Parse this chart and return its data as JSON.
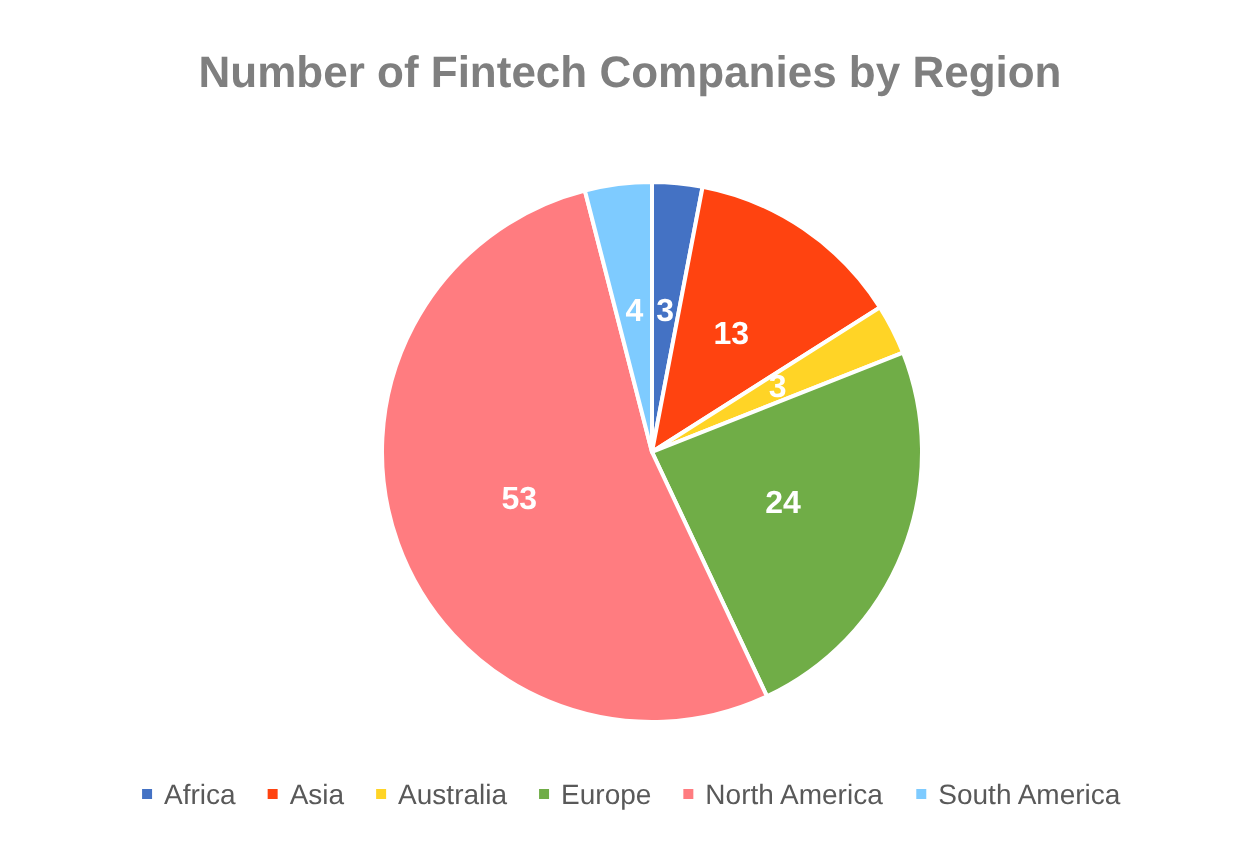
{
  "chart_data": {
    "type": "pie",
    "title": "Number of Fintech Companies by Region",
    "categories": [
      "Africa",
      "Asia",
      "Australia",
      "Europe",
      "North America",
      "South America"
    ],
    "values": [
      3,
      13,
      3,
      24,
      53,
      4
    ],
    "colors": [
      "#4472c4",
      "#ff4310",
      "#ffd426",
      "#70ad47",
      "#ff7c80",
      "#7ecbff"
    ],
    "data_labels": true,
    "legend": "bottom"
  }
}
